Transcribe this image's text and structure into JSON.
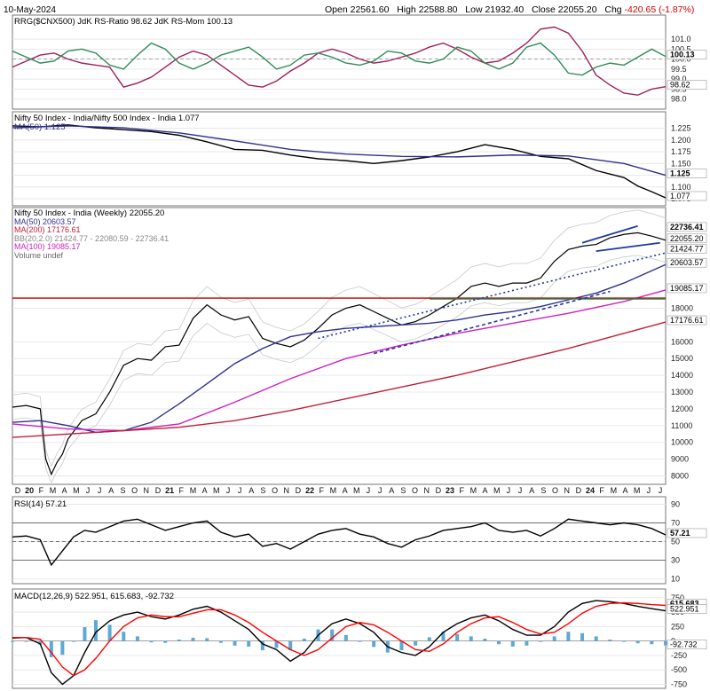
{
  "header": {
    "date": "10-May-2024",
    "open_label": "Open",
    "open": "22561.60",
    "high_label": "High",
    "high": "22588.80",
    "low_label": "Low",
    "low": "21932.40",
    "close_label": "Close",
    "close": "22055.20",
    "chg_label": "Chg",
    "chg": "-420.65 (-1.87%)"
  },
  "chart_data": [
    {
      "type": "line",
      "panel": "rrg",
      "title": "RRG($CNX500) JdK RS-Ratio 98.62 JdK RS-Mom 100.13",
      "ylim": [
        97.5,
        102.2
      ],
      "y_ticks": [
        "101.0",
        "100.5",
        "100.0",
        "99.5",
        "99.0",
        "98.5",
        "98.0"
      ],
      "last_labels": [
        "100.13",
        "98.62"
      ],
      "series": [
        {
          "name": "JdK RS-Ratio",
          "color": "#a0205a",
          "x": [
            0,
            5,
            10,
            15,
            20,
            25,
            30,
            35,
            40,
            45,
            50,
            55,
            60,
            65,
            70,
            75,
            80,
            85,
            90,
            95,
            100,
            105,
            110,
            115,
            120,
            125,
            130,
            135,
            140,
            145,
            150,
            155,
            160,
            165,
            170,
            175,
            180,
            185,
            190,
            195,
            200,
            205,
            210,
            215,
            220,
            225,
            230,
            235
          ],
          "values": [
            99.6,
            99.9,
            100.2,
            100.3,
            100.0,
            99.8,
            99.7,
            99.6,
            98.6,
            98.8,
            99.1,
            99.6,
            100.1,
            100.4,
            100.2,
            99.7,
            99.2,
            98.7,
            98.6,
            98.9,
            99.4,
            99.8,
            100.3,
            100.5,
            100.3,
            100.0,
            99.8,
            99.9,
            100.1,
            100.3,
            100.6,
            100.8,
            100.5,
            100.1,
            99.8,
            99.9,
            100.3,
            100.8,
            101.5,
            101.6,
            101.3,
            100.4,
            99.2,
            98.7,
            98.3,
            98.2,
            98.5,
            98.62
          ]
        },
        {
          "name": "JdK RS-Mom",
          "color": "#2e8b57",
          "x": [
            0,
            5,
            10,
            15,
            20,
            25,
            30,
            35,
            40,
            45,
            50,
            55,
            60,
            65,
            70,
            75,
            80,
            85,
            90,
            95,
            100,
            105,
            110,
            115,
            120,
            125,
            130,
            135,
            140,
            145,
            150,
            155,
            160,
            165,
            170,
            175,
            180,
            185,
            190,
            195,
            200,
            205,
            210,
            215,
            220,
            225,
            230,
            235
          ],
          "values": [
            100.4,
            100.1,
            99.8,
            99.9,
            100.4,
            100.5,
            100.3,
            99.7,
            99.5,
            100.2,
            100.8,
            100.5,
            99.8,
            99.5,
            99.8,
            100.2,
            100.4,
            100.6,
            100.1,
            99.5,
            99.7,
            100.2,
            100.3,
            100.1,
            99.8,
            99.7,
            99.9,
            100.4,
            100.3,
            99.9,
            99.8,
            100.0,
            100.6,
            100.4,
            99.8,
            99.5,
            99.8,
            100.6,
            100.8,
            100.2,
            99.3,
            99.2,
            99.6,
            99.8,
            99.7,
            100.1,
            100.5,
            100.13
          ]
        }
      ]
    },
    {
      "type": "line",
      "panel": "relative",
      "title": "Nifty 50 Index - India/Nifty 500 Index - India 1.077",
      "ylim": [
        1.06,
        1.26
      ],
      "y_ticks": [
        "1.225",
        "1.200",
        "1.175",
        "1.150",
        "1.125",
        "1.100",
        "1.075"
      ],
      "last_labels": [
        "1.125",
        "1.077"
      ],
      "series": [
        {
          "name": "Nifty 50 Index - India/Nifty 500 Index - India",
          "color": "#000000",
          "x": [
            0,
            10,
            20,
            30,
            40,
            50,
            60,
            70,
            80,
            90,
            100,
            110,
            120,
            130,
            140,
            150,
            160,
            170,
            180,
            190,
            200,
            210,
            220,
            225,
            230,
            235
          ],
          "values": [
            1.23,
            1.228,
            1.232,
            1.226,
            1.222,
            1.218,
            1.21,
            1.196,
            1.18,
            1.178,
            1.168,
            1.16,
            1.156,
            1.15,
            1.156,
            1.164,
            1.175,
            1.19,
            1.18,
            1.165,
            1.16,
            1.135,
            1.12,
            1.102,
            1.09,
            1.077
          ]
        },
        {
          "name": "MA(50) 1.125",
          "color": "#303090",
          "x": [
            0,
            20,
            40,
            60,
            80,
            100,
            120,
            140,
            160,
            180,
            200,
            220,
            235
          ],
          "values": [
            1.226,
            1.23,
            1.226,
            1.215,
            1.198,
            1.18,
            1.17,
            1.165,
            1.164,
            1.168,
            1.166,
            1.15,
            1.125
          ]
        }
      ]
    },
    {
      "type": "line",
      "panel": "price",
      "title": "Nifty 50 Index - India (Weekly) 22055.20",
      "ylim": [
        7500,
        24000
      ],
      "y_ticks": [
        "18000",
        "16000",
        "15000",
        "14000",
        "13000",
        "12000",
        "11000",
        "10000",
        "9000",
        "8000"
      ],
      "last_labels": [
        "22736.41",
        "22055.20",
        "21424.77",
        "20603.57",
        "19085.17",
        "17176.61"
      ],
      "x_ticks": [
        "D",
        "20",
        "F",
        "M",
        "A",
        "M",
        "J",
        "J",
        "A",
        "S",
        "O",
        "N",
        "D",
        "21",
        "F",
        "M",
        "A",
        "M",
        "J",
        "J",
        "A",
        "S",
        "O",
        "N",
        "D",
        "22",
        "F",
        "M",
        "A",
        "M",
        "J",
        "J",
        "A",
        "S",
        "O",
        "N",
        "D",
        "23",
        "F",
        "M",
        "A",
        "M",
        "J",
        "J",
        "A",
        "S",
        "O",
        "N",
        "D",
        "24",
        "F",
        "M",
        "A",
        "M",
        "J",
        "J"
      ],
      "legend": [
        {
          "label": "Nifty 50 Index - India (Weekly) 22055.20",
          "color": "#000000"
        },
        {
          "label": "MA(50) 20603.57",
          "color": "#303090"
        },
        {
          "label": "MA(200) 17176.61",
          "color": "#c0203a"
        },
        {
          "label": "BB(20,2.0) 21424.77 - 22080.59 - 22736.41",
          "color": "#aaaaaa"
        },
        {
          "label": "MA(100) 19085.17",
          "color": "#d020c0"
        },
        {
          "label": "Volume undef",
          "color": "#888888"
        }
      ],
      "series": [
        {
          "name": "Nifty 50 Index - India (Weekly)",
          "color": "#000000",
          "x": [
            0,
            5,
            10,
            12,
            14,
            16,
            18,
            20,
            25,
            30,
            35,
            40,
            45,
            50,
            55,
            60,
            65,
            70,
            75,
            80,
            85,
            90,
            95,
            100,
            105,
            110,
            115,
            120,
            125,
            130,
            135,
            140,
            145,
            150,
            155,
            160,
            165,
            170,
            175,
            180,
            185,
            190,
            195,
            200,
            205,
            210,
            215,
            220,
            225,
            230,
            235
          ],
          "values": [
            12100,
            12200,
            12000,
            9000,
            8100,
            8800,
            9300,
            10200,
            11300,
            11700,
            13000,
            14600,
            15000,
            14900,
            15700,
            15800,
            17400,
            18200,
            17600,
            17300,
            17500,
            16200,
            15900,
            15700,
            16100,
            16800,
            17600,
            18000,
            18200,
            17800,
            17400,
            17000,
            17200,
            17600,
            18100,
            18600,
            19300,
            19500,
            19300,
            19500,
            19500,
            19800,
            20800,
            21500,
            21700,
            21800,
            22200,
            22400,
            22500,
            22300,
            22055
          ]
        },
        {
          "name": "MA(50)",
          "color": "#303090",
          "x": [
            0,
            10,
            20,
            30,
            40,
            50,
            60,
            70,
            80,
            90,
            100,
            110,
            120,
            130,
            140,
            150,
            160,
            170,
            180,
            190,
            200,
            210,
            220,
            235
          ],
          "values": [
            11200,
            11300,
            11000,
            10600,
            10700,
            11200,
            12300,
            13500,
            14700,
            15600,
            16300,
            16600,
            16800,
            16900,
            17000,
            17100,
            17300,
            17600,
            17800,
            18100,
            18500,
            18900,
            19500,
            20604
          ]
        },
        {
          "name": "MA(100)",
          "color": "#d020c0",
          "x": [
            0,
            20,
            40,
            60,
            80,
            100,
            120,
            140,
            160,
            180,
            200,
            220,
            235
          ],
          "values": [
            11100,
            10800,
            10700,
            11100,
            12400,
            13800,
            15000,
            15800,
            16500,
            17100,
            17700,
            18400,
            19085
          ]
        },
        {
          "name": "MA(200)",
          "color": "#c0203a",
          "x": [
            0,
            20,
            40,
            60,
            80,
            100,
            120,
            140,
            160,
            180,
            200,
            220,
            235
          ],
          "values": [
            10300,
            10500,
            10700,
            10900,
            11300,
            11900,
            12600,
            13300,
            14000,
            14800,
            15600,
            16500,
            17177
          ]
        }
      ]
    },
    {
      "type": "line",
      "panel": "rsi",
      "title": "RSI(14) 57.21",
      "ylim": [
        5,
        98
      ],
      "y_ticks": [
        "90",
        "70",
        "50",
        "30",
        "10"
      ],
      "last_labels": [
        "57.21"
      ],
      "series": [
        {
          "name": "RSI(14)",
          "color": "#000000",
          "x": [
            0,
            5,
            10,
            14,
            18,
            22,
            26,
            30,
            35,
            40,
            45,
            50,
            55,
            60,
            65,
            70,
            75,
            80,
            85,
            90,
            95,
            100,
            105,
            110,
            115,
            120,
            125,
            130,
            135,
            140,
            145,
            150,
            155,
            160,
            165,
            170,
            175,
            180,
            185,
            190,
            195,
            200,
            205,
            210,
            215,
            220,
            225,
            230,
            235
          ],
          "values": [
            55,
            56,
            52,
            25,
            40,
            55,
            62,
            60,
            66,
            72,
            74,
            68,
            62,
            66,
            70,
            72,
            60,
            55,
            58,
            45,
            48,
            42,
            50,
            58,
            62,
            64,
            58,
            55,
            48,
            44,
            52,
            56,
            62,
            64,
            66,
            70,
            62,
            60,
            62,
            56,
            64,
            74,
            72,
            70,
            68,
            70,
            68,
            64,
            57.21
          ]
        }
      ]
    },
    {
      "type": "line",
      "panel": "macd",
      "title": "MACD(12,26,9) 522.951, 615.683, -92.732",
      "ylim": [
        -820,
        900
      ],
      "y_ticks": [
        "750",
        "500",
        "250",
        "0",
        "-250",
        "-500",
        "-750"
      ],
      "last_labels": [
        "615.683",
        "522.951",
        "-92.732"
      ],
      "series": [
        {
          "name": "MACD",
          "color": "#000000",
          "x": [
            0,
            5,
            10,
            14,
            18,
            22,
            26,
            30,
            35,
            40,
            45,
            50,
            55,
            60,
            65,
            70,
            75,
            80,
            85,
            90,
            95,
            100,
            105,
            110,
            115,
            120,
            125,
            130,
            135,
            140,
            145,
            150,
            155,
            160,
            165,
            170,
            175,
            180,
            185,
            190,
            195,
            200,
            205,
            210,
            215,
            220,
            225,
            230,
            235
          ],
          "values": [
            50,
            60,
            -50,
            -550,
            -750,
            -600,
            -200,
            150,
            350,
            450,
            500,
            420,
            380,
            450,
            550,
            600,
            500,
            350,
            200,
            -50,
            -150,
            -350,
            -200,
            100,
            300,
            380,
            300,
            150,
            -100,
            -200,
            -250,
            -100,
            150,
            300,
            400,
            450,
            350,
            200,
            100,
            100,
            250,
            500,
            650,
            700,
            680,
            650,
            600,
            560,
            523
          ]
        },
        {
          "name": "Signal",
          "color": "#ff0000",
          "x": [
            0,
            5,
            10,
            14,
            18,
            22,
            26,
            30,
            35,
            40,
            45,
            50,
            55,
            60,
            65,
            70,
            75,
            80,
            85,
            90,
            95,
            100,
            105,
            110,
            115,
            120,
            125,
            130,
            135,
            140,
            145,
            150,
            155,
            160,
            165,
            170,
            175,
            180,
            185,
            190,
            195,
            200,
            205,
            210,
            215,
            220,
            225,
            230,
            235
          ],
          "values": [
            60,
            60,
            30,
            -200,
            -450,
            -600,
            -500,
            -300,
            0,
            250,
            400,
            450,
            420,
            420,
            480,
            540,
            540,
            450,
            320,
            150,
            0,
            -150,
            -250,
            -150,
            50,
            250,
            320,
            280,
            150,
            0,
            -150,
            -180,
            -50,
            150,
            300,
            400,
            420,
            320,
            200,
            120,
            150,
            300,
            480,
            600,
            650,
            660,
            650,
            630,
            616
          ]
        }
      ]
    }
  ],
  "annotations": {
    "horizontal_line_color": "#c00000",
    "green_line_color": "#2e8b57",
    "trendline_color": "#1f3aa0"
  }
}
